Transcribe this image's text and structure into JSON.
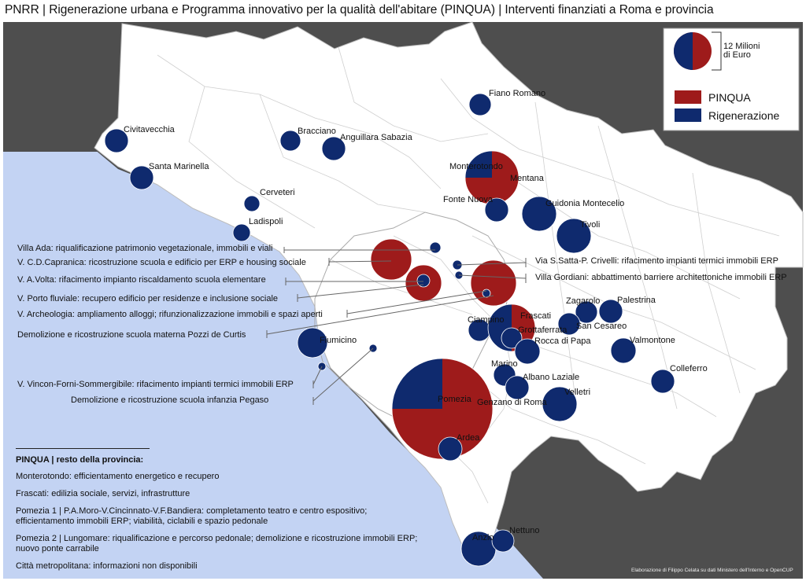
{
  "title": "PNRR | Rigenerazione urbana e Programma innovativo per la qualità dell'abitare (PINQUA) | Interventi finanziati a Roma e provincia",
  "colors": {
    "pinqua": "#9e1b1b",
    "rigenerazione": "#0f2a6e",
    "sea": "#c3d3f3",
    "outside": "#4e4e4e",
    "province": "#ffffff",
    "borders": "#c9c9c9"
  },
  "legend": {
    "size_label": [
      "12 Milioni",
      "di Euro"
    ],
    "items": [
      {
        "label": "PINQUA",
        "color": "#9e1b1b"
      },
      {
        "label": "Rigenerazione",
        "color": "#0f2a6e"
      }
    ]
  },
  "places": [
    {
      "name": "Fiano Romano"
    },
    {
      "name": "Civitavecchia"
    },
    {
      "name": "Bracciano"
    },
    {
      "name": "Anguillara Sabazia"
    },
    {
      "name": "Santa Marinella"
    },
    {
      "name": "Monterotondo"
    },
    {
      "name": "Mentana"
    },
    {
      "name": "Cerveteri"
    },
    {
      "name": "Fonte Nuova"
    },
    {
      "name": "Guidonia Montecelio"
    },
    {
      "name": "Ladispoli"
    },
    {
      "name": "Tivoli"
    },
    {
      "name": "Zagarolo"
    },
    {
      "name": "Palestrina"
    },
    {
      "name": "Ciampino"
    },
    {
      "name": "Frascati"
    },
    {
      "name": "San Cesareo"
    },
    {
      "name": "Grottaferrata"
    },
    {
      "name": "Fiumicino"
    },
    {
      "name": "Rocca di Papa"
    },
    {
      "name": "Valmontone"
    },
    {
      "name": "Marino"
    },
    {
      "name": "Albano Laziale"
    },
    {
      "name": "Colleferro"
    },
    {
      "name": "Velletri"
    },
    {
      "name": "Pomezia"
    },
    {
      "name": "Genzano di Roma"
    },
    {
      "name": "Ardea"
    },
    {
      "name": "Anzio"
    },
    {
      "name": "Nettuno"
    }
  ],
  "rome_projects_left": [
    "Villa Ada: riqualificazione patrimonio vegetazionale, immobili e viali",
    "V. C.D.Capranica: ricostruzione scuola e edificio per ERP e housing sociale",
    "V. A.Volta: rifacimento impianto riscaldamento scuola elementare",
    "V. Porto fluviale: recupero edificio per residenze e inclusione sociale",
    "V. Archeologia: ampliamento alloggi; rifunzionalizzazione immobili e spazi aperti",
    "Demolizione e ricostruzione scuola materna Pozzi de Curtis",
    "V. Vincon-Forni-Sommergibile: rifacimento impianti termici immobili ERP",
    "Demolizione e ricostruzione scuola infanzia Pegaso"
  ],
  "rome_projects_right": [
    "Via S.Satta-P. Crivelli: rifacimento impianti termici immobili ERP",
    "Villa Gordiani: abbattimento barriere architettoniche immobili ERP"
  ],
  "notes": {
    "heading": "PINQUA | resto della provincia:",
    "items": [
      "Monterotondo: efficientamento energetico e recupero",
      "Frascati: edilizia sociale, servizi, infrastrutture",
      "Pomezia 1 | P.A.Moro-V.Cincinnato-V.F.Bandiera: completamento teatro e centro espositivo; efficientamento immobili ERP; viabilità, ciclabili e spazio pedonale",
      "Pomezia 2 | Lungomare: riqualificazione e percorso pedonale; demolizione e ricostruzione immobili ERP; nuovo ponte carrabile",
      "Città metropolitana: informazioni non disponibili"
    ]
  },
  "credit": "Elaborazione di Filippo Celata su dati Ministero dell'Interno e OpenCUP"
}
